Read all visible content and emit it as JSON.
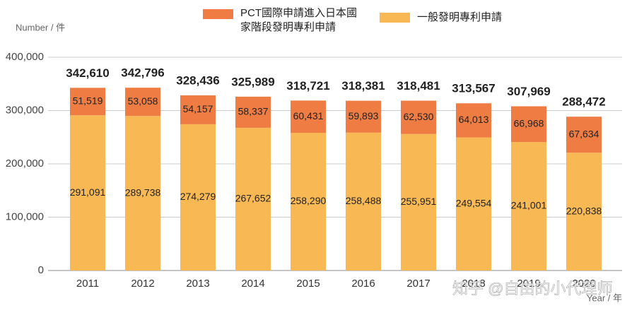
{
  "chart_data": {
    "type": "stacked_bar",
    "y_label": "Number / 件",
    "x_label": "Year / 年",
    "categories": [
      "2011",
      "2012",
      "2013",
      "2014",
      "2015",
      "2016",
      "2017",
      "2018",
      "2019",
      "2020"
    ],
    "series": [
      {
        "name": "一般發明專利申請",
        "color": "#f8b955",
        "values": [
          291091,
          289738,
          274279,
          267652,
          258290,
          258488,
          255951,
          249554,
          241001,
          220838
        ],
        "value_labels": [
          "291,091",
          "289,738",
          "274,279",
          "267,652",
          "258,290",
          "258,488",
          "255,951",
          "249,554",
          "241,001",
          "220,838"
        ]
      },
      {
        "name": "PCT國際申請進入日本國家階段發明專利申請",
        "color": "#ef7d43",
        "values": [
          51519,
          53058,
          54157,
          58337,
          60431,
          59893,
          62530,
          64013,
          66968,
          67634
        ],
        "value_labels": [
          "51,519",
          "53,058",
          "54,157",
          "58,337",
          "60,431",
          "59,893",
          "62,530",
          "64,013",
          "66,968",
          "67,634"
        ]
      }
    ],
    "totals": [
      342610,
      342796,
      328436,
      325989,
      318721,
      318381,
      318481,
      313567,
      307969,
      288472
    ],
    "total_labels": [
      "342,610",
      "342,796",
      "328,436",
      "325,989",
      "318,721",
      "318,381",
      "318,481",
      "313,567",
      "307,969",
      "288,472"
    ],
    "ylim": [
      0,
      400000
    ],
    "yticks": [
      0,
      {
        "value": 100000,
        "label": "100,000"
      },
      {
        "value": 200000,
        "label": "200,000"
      },
      {
        "value": 300000,
        "label": "300,000"
      },
      {
        "value": 400000,
        "label": "400,000"
      }
    ],
    "grid": true,
    "watermark": "知乎 @自由的小代理师"
  }
}
